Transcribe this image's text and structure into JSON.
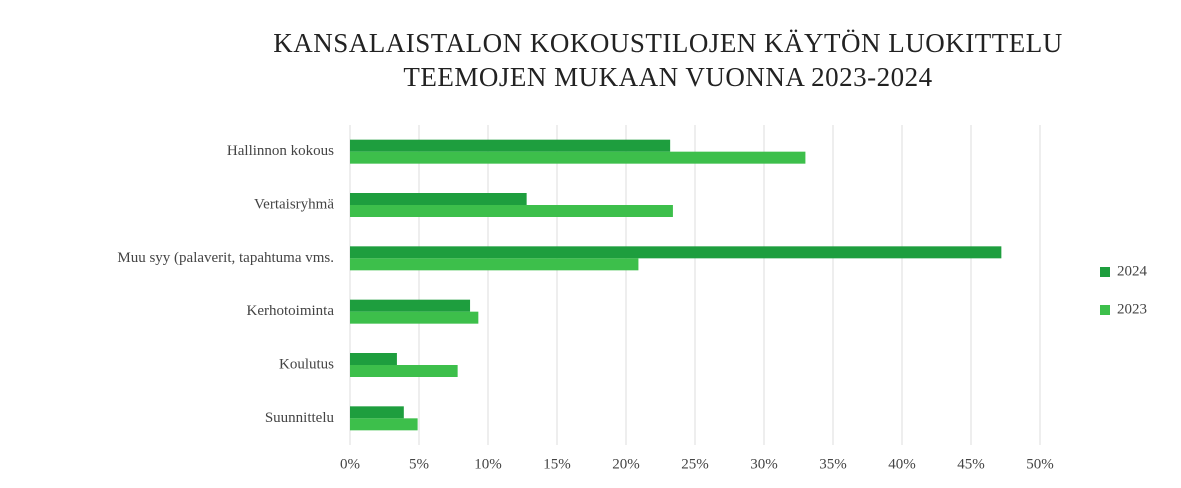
{
  "chart_data": {
    "type": "bar",
    "orientation": "horizontal",
    "title": "KANSALAISTALON KOKOUSTILOJEN KÄYTÖN LUOKITTELU TEEMOJEN MUKAAN VUONNA 2023-2024",
    "categories": [
      "Hallinnon kokous",
      "Vertaisryhmä",
      "Muu syy (palaverit, tapahtuma vms.",
      "Kerhotoiminta",
      "Koulutus",
      "Suunnittelu"
    ],
    "series": [
      {
        "name": "2024",
        "color": "#1e9e3e",
        "values": [
          23.2,
          12.8,
          47.2,
          8.7,
          3.4,
          3.9
        ]
      },
      {
        "name": "2023",
        "color": "#3dbf4b",
        "values": [
          33.0,
          23.4,
          20.9,
          9.3,
          7.8,
          4.9
        ]
      }
    ],
    "xlim": [
      0,
      50
    ],
    "xticks": [
      {
        "value": 0,
        "label": "0%"
      },
      {
        "value": 5,
        "label": "5%"
      },
      {
        "value": 10,
        "label": "10%"
      },
      {
        "value": 15,
        "label": "15%"
      },
      {
        "value": 20,
        "label": "20%"
      },
      {
        "value": 25,
        "label": "25%"
      },
      {
        "value": 30,
        "label": "30%"
      },
      {
        "value": 35,
        "label": "35%"
      },
      {
        "value": 40,
        "label": "40%"
      },
      {
        "value": 45,
        "label": "45%"
      },
      {
        "value": 50,
        "label": "50%"
      }
    ],
    "grid": true,
    "legend": "right"
  }
}
